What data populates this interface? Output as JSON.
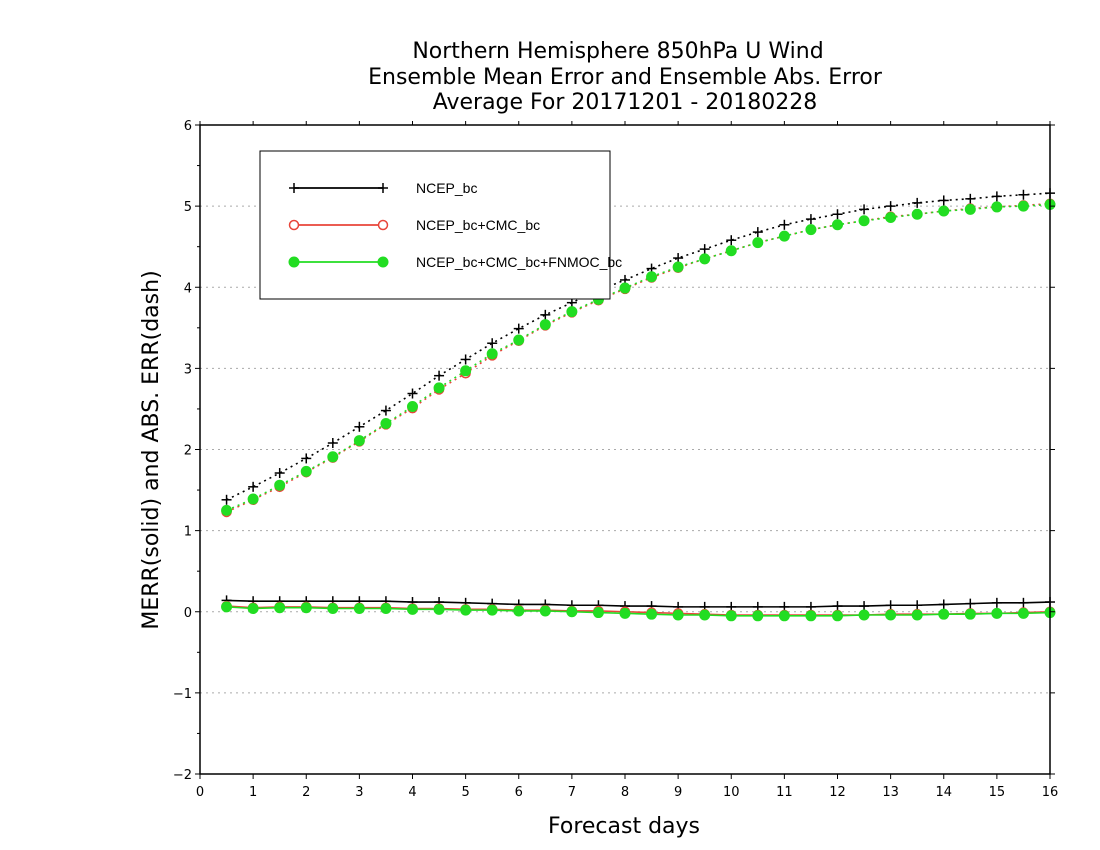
{
  "chart_data": {
    "type": "line",
    "title": "Northern Hemisphere 850hPa U Wind",
    "subtitle": "Ensemble Mean Error and Ensemble Abs. Error",
    "subtitle2": "Average For 20171201 - 20180228",
    "xlabel": "Forecast days",
    "ylabel": "MERR(solid) and ABS. ERR(dash)",
    "xlim": [
      0,
      16
    ],
    "ylim": [
      -2,
      6
    ],
    "xticks": [
      "0",
      "1",
      "2",
      "3",
      "4",
      "5",
      "6",
      "7",
      "8",
      "9",
      "10",
      "11",
      "12",
      "13",
      "14",
      "15",
      "16"
    ],
    "yticks": [
      "6",
      "5",
      "4",
      "3",
      "2",
      "1",
      "0",
      "−1",
      "−2"
    ],
    "grid": true,
    "legend_position": "top-left",
    "x": [
      0.5,
      1,
      1.5,
      2,
      2.5,
      3,
      3.5,
      4,
      4.5,
      5,
      5.5,
      6,
      6.5,
      7,
      7.5,
      8,
      8.5,
      9,
      9.5,
      10,
      10.5,
      11,
      11.5,
      12,
      12.5,
      13,
      13.5,
      14,
      14.5,
      15,
      15.5,
      16
    ],
    "series": [
      {
        "name": "NCEP_bc",
        "color": "#000000",
        "marker": "plus",
        "abs_error": [
          1.38,
          1.54,
          1.71,
          1.89,
          2.08,
          2.28,
          2.48,
          2.69,
          2.91,
          3.11,
          3.31,
          3.49,
          3.66,
          3.81,
          3.96,
          4.09,
          4.23,
          4.36,
          4.47,
          4.58,
          4.68,
          4.77,
          4.84,
          4.9,
          4.96,
          5.0,
          5.04,
          5.07,
          5.09,
          5.12,
          5.14,
          5.16
        ],
        "mean_error": [
          0.14,
          0.13,
          0.13,
          0.13,
          0.13,
          0.13,
          0.13,
          0.12,
          0.12,
          0.11,
          0.1,
          0.09,
          0.09,
          0.08,
          0.08,
          0.07,
          0.07,
          0.06,
          0.06,
          0.06,
          0.06,
          0.06,
          0.06,
          0.07,
          0.07,
          0.08,
          0.08,
          0.09,
          0.1,
          0.11,
          0.11,
          0.12
        ]
      },
      {
        "name": "NCEP_bc+CMC_bc",
        "color": "#e8453a",
        "marker": "open-circle",
        "abs_error": [
          1.23,
          1.38,
          1.54,
          1.72,
          1.9,
          2.1,
          2.31,
          2.51,
          2.74,
          2.94,
          3.16,
          3.34,
          3.53,
          3.69,
          3.84,
          3.98,
          4.12,
          4.24,
          4.35,
          4.45,
          4.55,
          4.63,
          4.71,
          4.77,
          4.82,
          4.87,
          4.9,
          4.94,
          4.97,
          4.99,
          5.01,
          5.03
        ],
        "mean_error": [
          0.07,
          0.05,
          0.06,
          0.06,
          0.05,
          0.05,
          0.05,
          0.04,
          0.04,
          0.03,
          0.03,
          0.02,
          0.02,
          0.01,
          0.01,
          0.0,
          -0.01,
          -0.02,
          -0.03,
          -0.04,
          -0.04,
          -0.04,
          -0.04,
          -0.04,
          -0.04,
          -0.03,
          -0.03,
          -0.03,
          -0.02,
          -0.02,
          -0.01,
          0.0
        ]
      },
      {
        "name": "NCEP_bc+CMC_bc+FNMOC_bc",
        "color": "#22dd22",
        "marker": "filled-circle",
        "abs_error": [
          1.25,
          1.39,
          1.56,
          1.73,
          1.91,
          2.11,
          2.32,
          2.53,
          2.76,
          2.97,
          3.18,
          3.35,
          3.54,
          3.7,
          3.85,
          3.99,
          4.13,
          4.25,
          4.35,
          4.45,
          4.55,
          4.63,
          4.71,
          4.77,
          4.82,
          4.86,
          4.9,
          4.94,
          4.96,
          4.99,
          5.0,
          5.02
        ],
        "mean_error": [
          0.06,
          0.04,
          0.05,
          0.05,
          0.04,
          0.04,
          0.04,
          0.03,
          0.03,
          0.02,
          0.02,
          0.01,
          0.01,
          0.0,
          -0.01,
          -0.02,
          -0.03,
          -0.04,
          -0.04,
          -0.05,
          -0.05,
          -0.05,
          -0.05,
          -0.05,
          -0.04,
          -0.04,
          -0.04,
          -0.03,
          -0.03,
          -0.02,
          -0.02,
          -0.01
        ]
      }
    ]
  }
}
